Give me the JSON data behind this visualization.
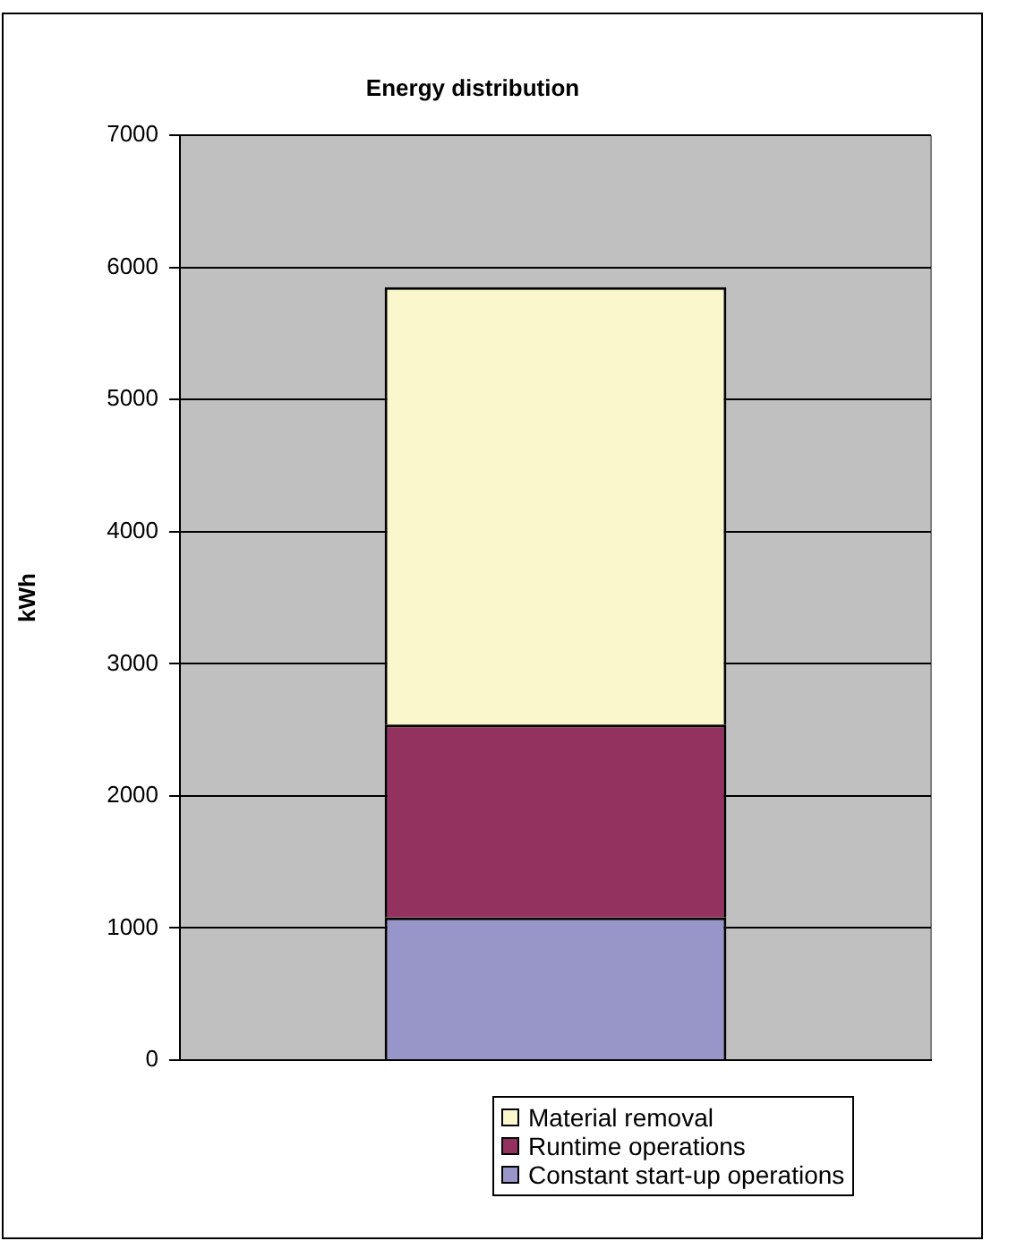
{
  "chart_data": {
    "type": "bar",
    "title": "Energy distribution",
    "ylabel": "kWh",
    "categories": [
      null
    ],
    "stacked": true,
    "series": [
      {
        "name": "Constant start-up operations",
        "color": "#9896c8",
        "values": [
          1080
        ]
      },
      {
        "name": "Runtime operations",
        "color": "#93325f",
        "values": [
          1460
        ]
      },
      {
        "name": "Material removal",
        "color": "#f9f7cb",
        "values": [
          3310
        ]
      }
    ],
    "ylim": [
      0,
      7000
    ],
    "yticks": [
      0,
      1000,
      2000,
      3000,
      4000,
      5000,
      6000,
      7000
    ],
    "grid": "y",
    "legend": "bottom right"
  }
}
